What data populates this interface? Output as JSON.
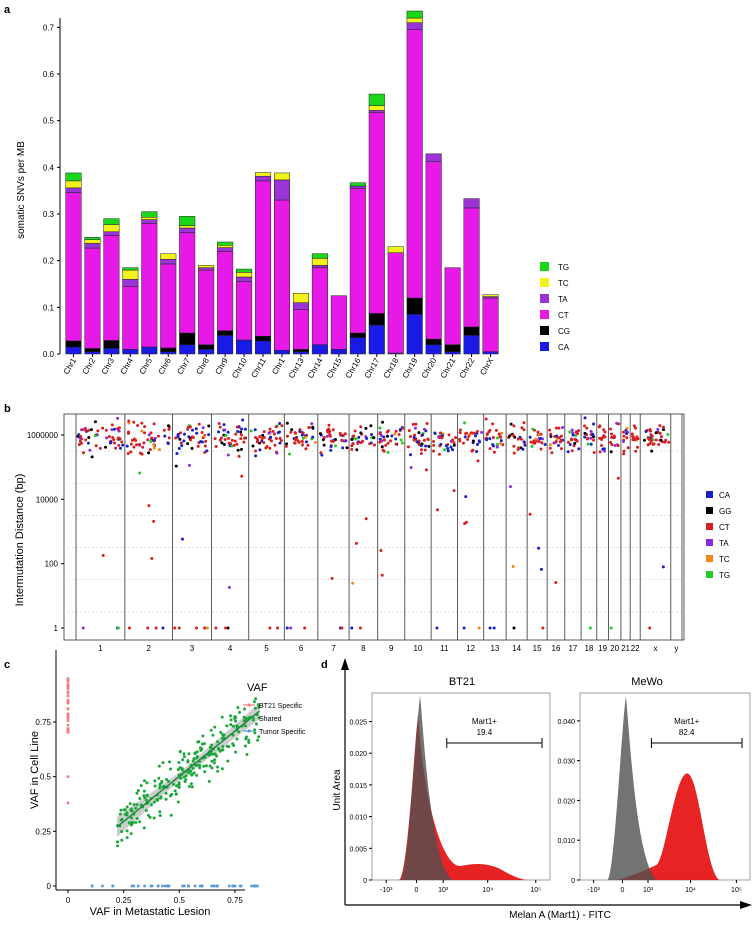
{
  "panels": {
    "a": "a",
    "b": "b",
    "c": "c",
    "d": "d"
  },
  "chart_data": [
    {
      "panel": "a",
      "type": "bar",
      "stacked": true,
      "ylabel": "somatic SNVs per MB",
      "ylim": [
        0,
        0.72
      ],
      "yticks": [
        0.0,
        0.1,
        0.2,
        0.3,
        0.4,
        0.5,
        0.6,
        0.7
      ],
      "categories": [
        "Chr1",
        "Chr2",
        "Chr3",
        "Chr4",
        "Chr5",
        "Chr6",
        "Chr7",
        "Chr8",
        "Chr9",
        "Chr10",
        "Chr11",
        "Chr1",
        "Chr13",
        "Chr14",
        "Chr15",
        "Chr16",
        "Chr17",
        "Chr18",
        "Chr19",
        "Chr20",
        "Chr21",
        "Chr22",
        "ChrX"
      ],
      "legend_position": "right",
      "series": [
        {
          "name": "CA",
          "color": "#1a1ae6",
          "values": [
            0.015,
            0.005,
            0.012,
            0.01,
            0.015,
            0.005,
            0.02,
            0.01,
            0.04,
            0.03,
            0.028,
            0.008,
            0.005,
            0.02,
            0.01,
            0.035,
            0.062,
            0.002,
            0.085,
            0.02,
            0.005,
            0.04,
            0.005
          ]
        },
        {
          "name": "CG",
          "color": "#000000",
          "values": [
            0.013,
            0.007,
            0.017,
            0.0,
            0.0,
            0.008,
            0.025,
            0.01,
            0.01,
            0.0,
            0.01,
            0.0,
            0.005,
            0.0,
            0.0,
            0.01,
            0.025,
            0.0,
            0.035,
            0.012,
            0.015,
            0.018,
            0.0
          ]
        },
        {
          "name": "CT",
          "color": "#e619e6",
          "values": [
            0.318,
            0.215,
            0.225,
            0.135,
            0.265,
            0.18,
            0.215,
            0.16,
            0.17,
            0.125,
            0.333,
            0.322,
            0.085,
            0.165,
            0.115,
            0.31,
            0.43,
            0.215,
            0.575,
            0.38,
            0.165,
            0.255,
            0.115
          ]
        },
        {
          "name": "TA",
          "color": "#9a34d8",
          "values": [
            0.01,
            0.01,
            0.008,
            0.015,
            0.008,
            0.01,
            0.01,
            0.005,
            0.008,
            0.01,
            0.01,
            0.043,
            0.015,
            0.005,
            0.0,
            0.005,
            0.005,
            0.0,
            0.015,
            0.017,
            0.0,
            0.02,
            0.003
          ]
        },
        {
          "name": "TC",
          "color": "#f2f21a",
          "values": [
            0.015,
            0.008,
            0.015,
            0.02,
            0.005,
            0.012,
            0.005,
            0.005,
            0.005,
            0.01,
            0.008,
            0.015,
            0.02,
            0.015,
            0.0,
            0.0,
            0.01,
            0.013,
            0.01,
            0.0,
            0.0,
            0.0,
            0.004
          ]
        },
        {
          "name": "TG",
          "color": "#1ad71a",
          "values": [
            0.017,
            0.005,
            0.013,
            0.005,
            0.012,
            0.0,
            0.02,
            0.0,
            0.007,
            0.007,
            0.0,
            0.0,
            0.0,
            0.01,
            0.0,
            0.007,
            0.025,
            0.0,
            0.015,
            0.0,
            0.0,
            0.0,
            0.0
          ]
        }
      ]
    },
    {
      "panel": "b",
      "type": "scatter",
      "ylabel": "Intermutation Distance (bp)",
      "yscale": "log10",
      "yticks": [
        "1",
        "100",
        "10000",
        "1000000"
      ],
      "categories": [
        "1",
        "2",
        "3",
        "4",
        "5",
        "6",
        "7",
        "8",
        "9",
        "10",
        "11",
        "12",
        "13",
        "14",
        "15",
        "16",
        "17",
        "18",
        "19",
        "20",
        "21",
        "22",
        "x",
        "y"
      ],
      "chrom_sizes": [
        249,
        243,
        198,
        190,
        181,
        171,
        159,
        146,
        138,
        134,
        135,
        133,
        114,
        107,
        102,
        90,
        83,
        80,
        59,
        64,
        47,
        51,
        156,
        57
      ],
      "legend": [
        {
          "name": "CA",
          "color": "#1520c8"
        },
        {
          "name": "GG",
          "color": "#000000"
        },
        {
          "name": "CT",
          "color": "#d92020"
        },
        {
          "name": "TA",
          "color": "#8a2be2"
        },
        {
          "name": "TC",
          "color": "#f08a1a"
        },
        {
          "name": "TG",
          "color": "#22cc22"
        }
      ],
      "legend_position": "right"
    },
    {
      "panel": "c",
      "type": "scatter",
      "xlabel": "VAF in Metastatic Lesion",
      "ylabel": "VAF in Cell Line",
      "xlim": [
        -0.03,
        0.92
      ],
      "ylim": [
        -0.04,
        0.96
      ],
      "xticks": [
        0,
        0.25,
        0.5,
        0.75
      ],
      "yticks": [
        0,
        0.25,
        0.5,
        0.75
      ],
      "legend_title": "VAF",
      "legend_position": "right",
      "series": [
        {
          "name": "BT21 Specific",
          "color": "#f08080"
        },
        {
          "name": "Shared",
          "color": "#1aa83a"
        },
        {
          "name": "Tumor Specific",
          "color": "#5b9bd5"
        }
      ],
      "fit": {
        "x": [
          0.22,
          0.86
        ],
        "y": [
          0.27,
          0.8
        ]
      }
    },
    {
      "panel": "d",
      "type": "area",
      "ylabel": "Unit Area",
      "xlabel": "Melan A (Mart1) - FITC",
      "xticks": [
        "-10³",
        "0",
        "10³",
        "10⁴",
        "10⁵"
      ],
      "plots": [
        {
          "title": "BT21",
          "gate_label": "Mart1+",
          "gate_value": "19.4",
          "yticks": [
            "0",
            "0.005",
            "0.010",
            "0.015",
            "0.020",
            "0.025"
          ],
          "ymax": 0.0295
        },
        {
          "title": "MeWo",
          "gate_label": "Mart1+",
          "gate_value": "82.4",
          "yticks": [
            "0",
            "0.010",
            "0.020",
            "0.030",
            "0.040"
          ],
          "ymax": 0.047
        }
      ],
      "colors": {
        "control": "#505050",
        "sample": "#e61010"
      }
    }
  ]
}
